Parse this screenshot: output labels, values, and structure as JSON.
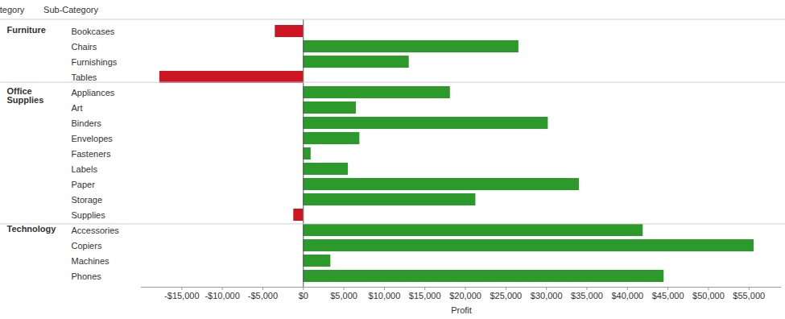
{
  "chart_data": {
    "type": "bar",
    "orientation": "horizontal",
    "column_headers": [
      "Category",
      "Sub-Category"
    ],
    "groups": [
      "Furniture",
      "Furniture",
      "Furniture",
      "Furniture",
      "Office Supplies",
      "Office Supplies",
      "Office Supplies",
      "Office Supplies",
      "Office Supplies",
      "Office Supplies",
      "Office Supplies",
      "Office Supplies",
      "Office Supplies",
      "Technology",
      "Technology",
      "Technology",
      "Technology"
    ],
    "categories": [
      "Bookcases",
      "Chairs",
      "Furnishings",
      "Tables",
      "Appliances",
      "Art",
      "Binders",
      "Envelopes",
      "Fasteners",
      "Labels",
      "Paper",
      "Storage",
      "Supplies",
      "Accessories",
      "Copiers",
      "Machines",
      "Phones"
    ],
    "values": [
      -3473,
      26590,
      13059,
      -17725,
      18138,
      6528,
      30222,
      6964,
      950,
      5546,
      34054,
      21279,
      -1189,
      41937,
      55618,
      3385,
      44516
    ],
    "colors": [
      "#cc1422",
      "#2b9a2b",
      "#2b9a2b",
      "#cc1422",
      "#2b9a2b",
      "#2b9a2b",
      "#2b9a2b",
      "#2b9a2b",
      "#2b9a2b",
      "#2b9a2b",
      "#2b9a2b",
      "#2b9a2b",
      "#cc1422",
      "#2b9a2b",
      "#2b9a2b",
      "#2b9a2b",
      "#2b9a2b"
    ],
    "xlabel": "Profit",
    "xlim": [
      -20000,
      59000
    ],
    "xticks": [
      {
        "value": -15000,
        "label": "-$15,000"
      },
      {
        "value": -10000,
        "label": "-$10,000"
      },
      {
        "value": -5000,
        "label": "-$5,000"
      },
      {
        "value": 0,
        "label": "$0"
      },
      {
        "value": 5000,
        "label": "$5,000"
      },
      {
        "value": 10000,
        "label": "$10,000"
      },
      {
        "value": 15000,
        "label": "$15,000"
      },
      {
        "value": 20000,
        "label": "$20,000"
      },
      {
        "value": 25000,
        "label": "$25,000"
      },
      {
        "value": 30000,
        "label": "$30,000"
      },
      {
        "value": 35000,
        "label": "$35,000"
      },
      {
        "value": 40000,
        "label": "$40,000"
      },
      {
        "value": 45000,
        "label": "$45,000"
      },
      {
        "value": 50000,
        "label": "$50,000"
      },
      {
        "value": 55000,
        "label": "$55,000"
      }
    ]
  }
}
